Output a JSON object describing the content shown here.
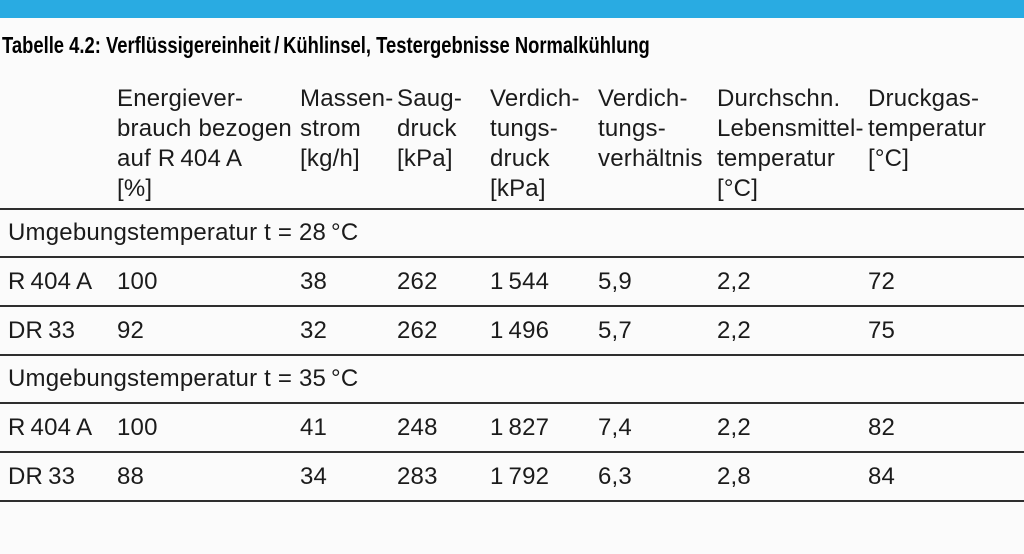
{
  "colors": {
    "accent": "#29ABE2",
    "rule": "#2e2e2e"
  },
  "title": "Tabelle 4.2: Verflüssigereinheit / Kühlinsel, Testergebnisse Normalkühlung",
  "table": {
    "columns": [
      {
        "label": ""
      },
      {
        "label": "Energiever-\nbrauch bezogen\nauf R 404 A\n[%]"
      },
      {
        "label": "Massen-\nstrom\n[kg/h]"
      },
      {
        "label": "Saug-\ndruck\n[kPa]"
      },
      {
        "label": "Verdich-\ntungs-\ndruck\n[kPa]"
      },
      {
        "label": "Verdich-\ntungs-\nverhältnis"
      },
      {
        "label": "Durchschn.\nLebensmittel-\ntemperatur\n[°C]"
      },
      {
        "label": "Druckgas-\ntemperatur\n[°C]"
      }
    ],
    "sections": [
      {
        "header": "Umgebungstemperatur t = 28 °C",
        "rows": [
          {
            "label": "R 404 A",
            "values": [
              "100",
              "38",
              "262",
              "1 544",
              "5,9",
              "2,2",
              "72"
            ]
          },
          {
            "label": "DR 33",
            "values": [
              "92",
              "32",
              "262",
              "1 496",
              "5,7",
              "2,2",
              "75"
            ]
          }
        ]
      },
      {
        "header": "Umgebungstemperatur t = 35 °C",
        "rows": [
          {
            "label": "R 404 A",
            "values": [
              "100",
              "41",
              "248",
              "1 827",
              "7,4",
              "2,2",
              "82"
            ]
          },
          {
            "label": "DR 33",
            "values": [
              "88",
              "34",
              "283",
              "1 792",
              "6,3",
              "2,8",
              "84"
            ]
          }
        ]
      }
    ]
  }
}
